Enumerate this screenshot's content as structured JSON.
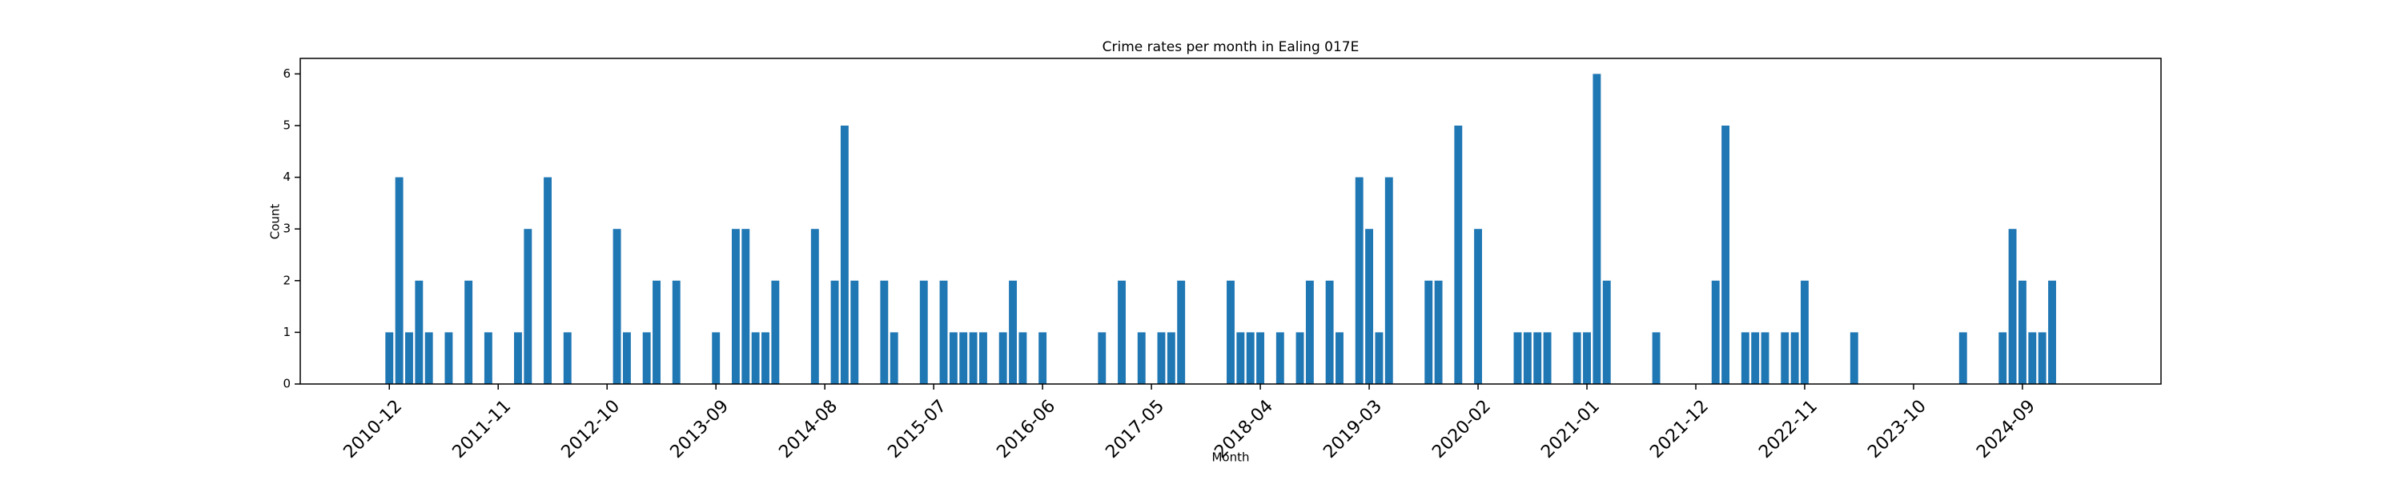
{
  "chart_data": {
    "type": "bar",
    "title": "Crime rates per month in Ealing 017E",
    "xlabel": "Month",
    "ylabel": "Count",
    "color": "#1f77b4",
    "x": [
      "2010-12",
      "2011-01",
      "2011-02",
      "2011-03",
      "2011-04",
      "2011-06",
      "2011-08",
      "2011-10",
      "2012-01",
      "2012-02",
      "2012-04",
      "2012-06",
      "2012-11",
      "2012-12",
      "2013-02",
      "2013-03",
      "2013-05",
      "2013-09",
      "2013-11",
      "2013-12",
      "2014-01",
      "2014-02",
      "2014-03",
      "2014-07",
      "2014-09",
      "2014-10",
      "2014-11",
      "2015-02",
      "2015-03",
      "2015-06",
      "2015-08",
      "2015-09",
      "2015-10",
      "2015-11",
      "2015-12",
      "2016-02",
      "2016-03",
      "2016-04",
      "2016-06",
      "2016-12",
      "2017-02",
      "2017-04",
      "2017-06",
      "2017-07",
      "2017-08",
      "2018-01",
      "2018-02",
      "2018-03",
      "2018-04",
      "2018-06",
      "2018-08",
      "2018-09",
      "2018-11",
      "2018-12",
      "2019-02",
      "2019-03",
      "2019-04",
      "2019-05",
      "2019-09",
      "2019-10",
      "2019-12",
      "2020-02",
      "2020-06",
      "2020-07",
      "2020-08",
      "2020-09",
      "2020-12",
      "2021-01",
      "2021-02",
      "2021-03",
      "2021-08",
      "2022-02",
      "2022-03",
      "2022-05",
      "2022-06",
      "2022-07",
      "2022-09",
      "2022-10",
      "2022-11",
      "2023-04",
      "2024-03",
      "2024-07",
      "2024-08",
      "2024-09",
      "2024-10",
      "2024-11",
      "2024-12"
    ],
    "values": [
      1,
      4,
      1,
      2,
      1,
      1,
      2,
      1,
      1,
      3,
      4,
      1,
      3,
      1,
      1,
      2,
      2,
      1,
      3,
      3,
      1,
      1,
      2,
      3,
      2,
      5,
      2,
      2,
      1,
      2,
      2,
      1,
      1,
      1,
      1,
      1,
      2,
      1,
      1,
      1,
      2,
      1,
      1,
      1,
      2,
      2,
      1,
      1,
      1,
      1,
      1,
      2,
      2,
      1,
      4,
      3,
      1,
      4,
      2,
      2,
      5,
      3,
      1,
      1,
      1,
      1,
      1,
      1,
      6,
      2,
      1,
      2,
      5,
      1,
      1,
      1,
      1,
      1,
      2,
      1,
      1,
      1,
      3,
      2,
      1,
      1,
      2
    ],
    "xlim": [
      "2010-03",
      "2025-11"
    ],
    "xticks": [
      "2010-12",
      "2011-11",
      "2012-10",
      "2013-09",
      "2014-08",
      "2015-07",
      "2016-06",
      "2017-05",
      "2018-04",
      "2019-03",
      "2020-02",
      "2021-01",
      "2021-12",
      "2022-11",
      "2023-10",
      "2024-09"
    ],
    "ylim": [
      0,
      6.3
    ],
    "yticks": [
      0,
      1,
      2,
      3,
      4,
      5,
      6
    ]
  }
}
